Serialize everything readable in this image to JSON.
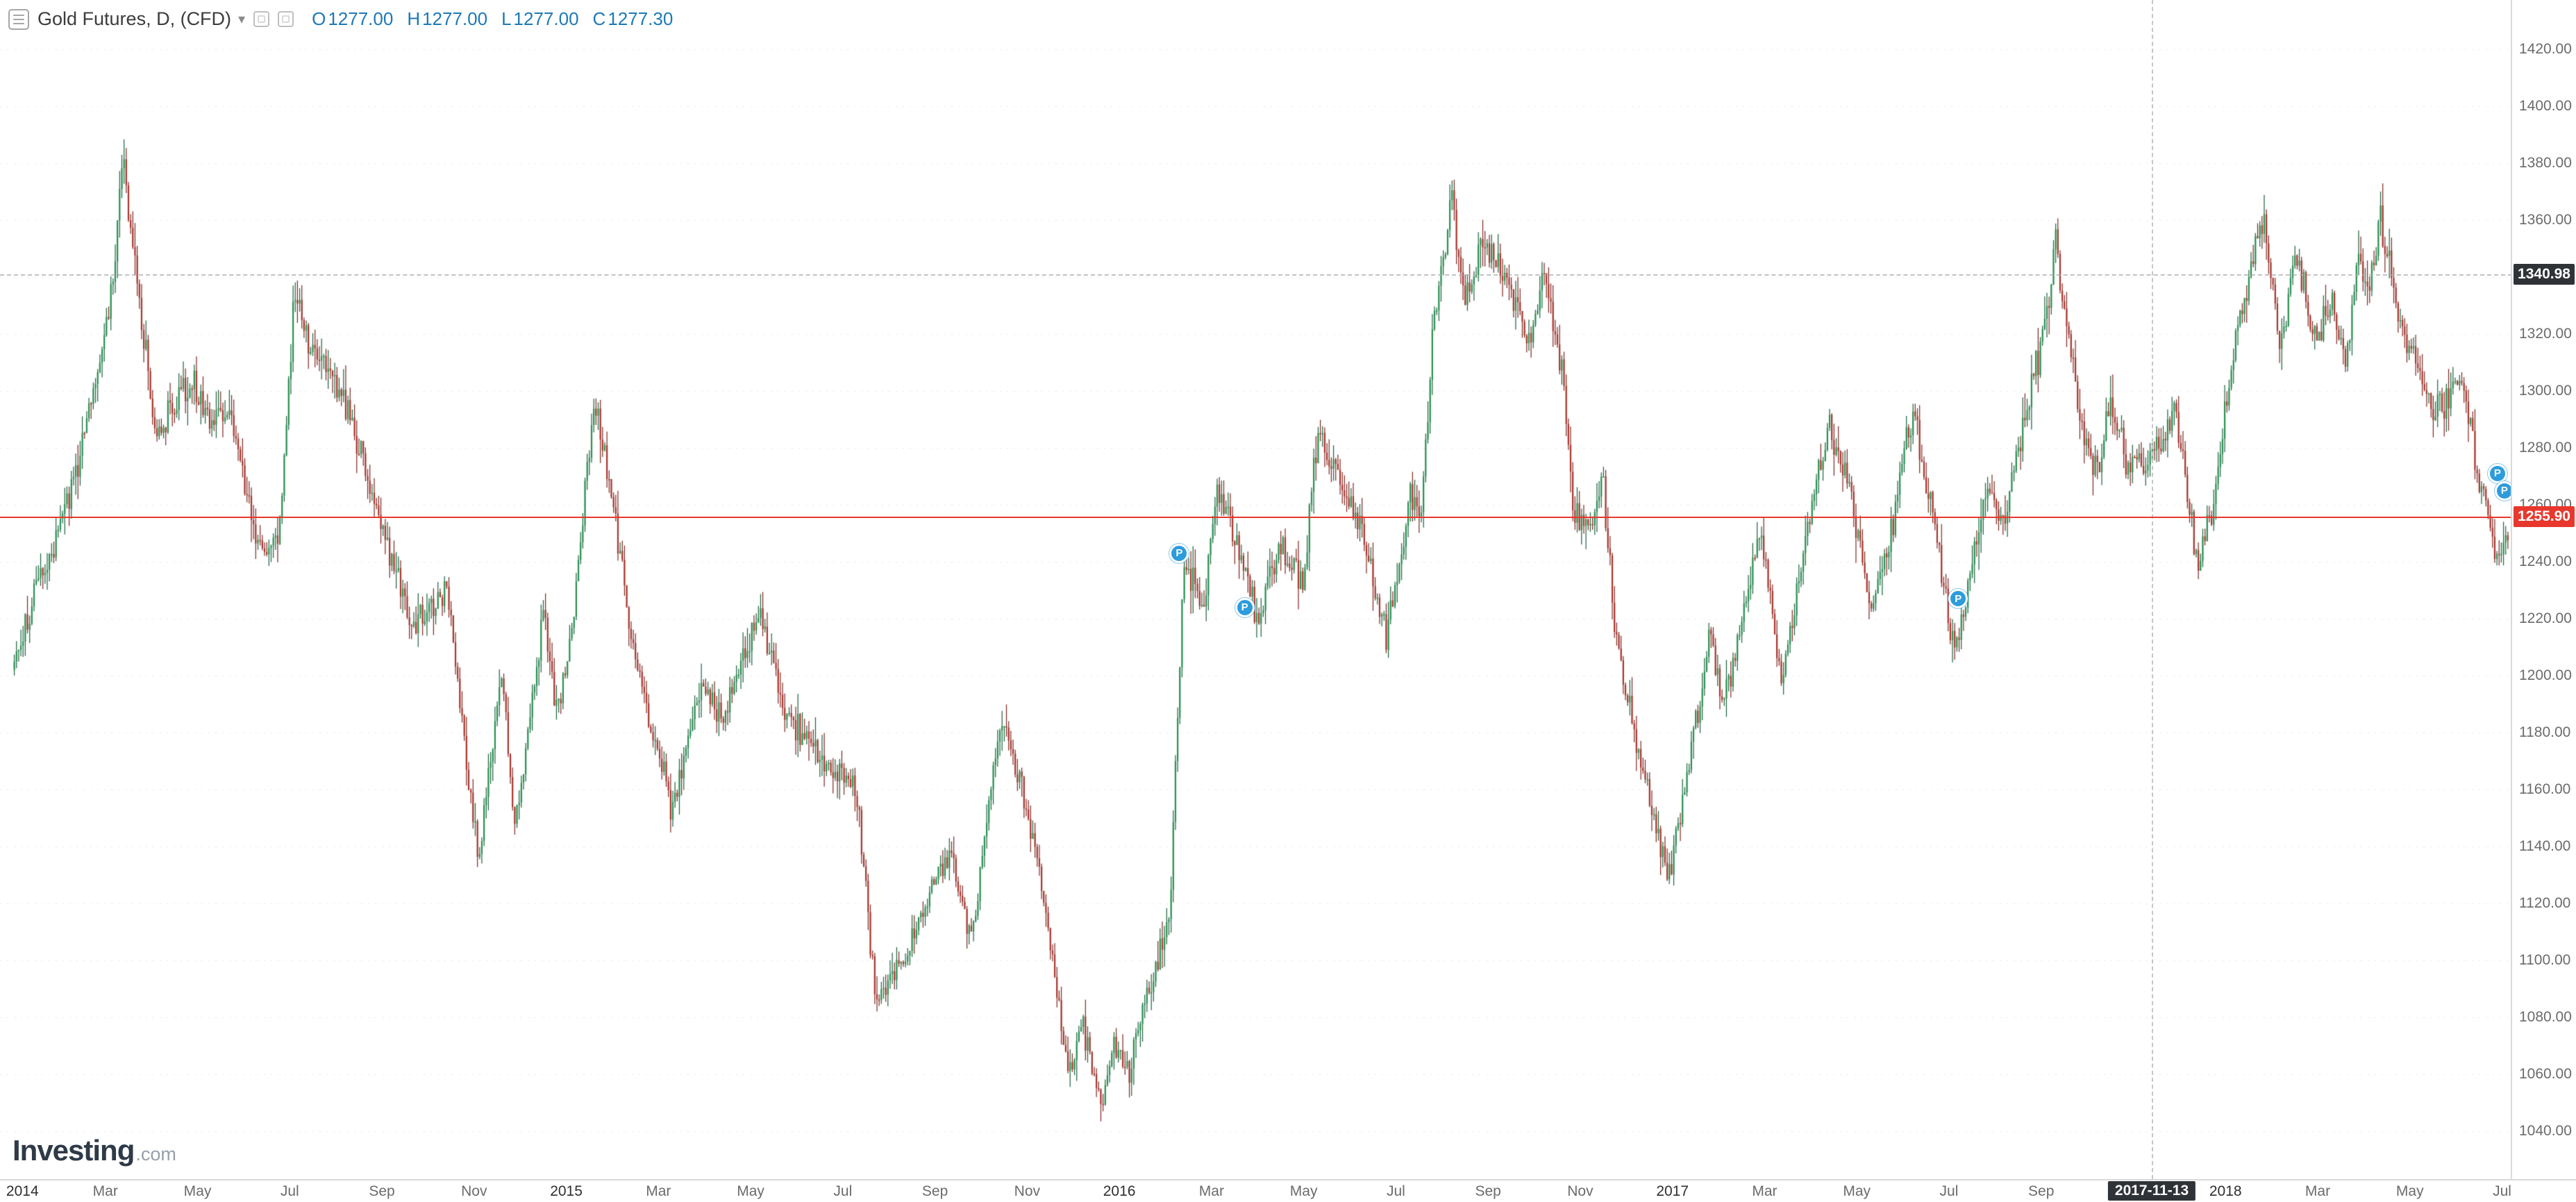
{
  "header": {
    "title": "Gold Futures, D, (CFD)",
    "caret": "▾",
    "ohlc": {
      "open_label": "O",
      "open": "1277.00",
      "high_label": "H",
      "high": "1277.00",
      "low_label": "L",
      "low": "1277.00",
      "close_label": "C",
      "close": "1277.30"
    }
  },
  "logo": {
    "main": "Investing",
    "suffix": ".com"
  },
  "price_axis": {
    "ticks": [
      "1420.00",
      "1400.00",
      "1380.00",
      "1360.00",
      "1340.00",
      "1320.00",
      "1300.00",
      "1280.00",
      "1260.00",
      "1240.00",
      "1220.00",
      "1200.00",
      "1180.00",
      "1160.00",
      "1140.00",
      "1120.00",
      "1100.00",
      "1080.00",
      "1060.00",
      "1040.00"
    ],
    "tags": [
      {
        "value": "1340.98",
        "price": 1340.98,
        "style": "dark"
      },
      {
        "value": "1255.90",
        "price": 1255.9,
        "style": "current"
      }
    ]
  },
  "time_axis": {
    "ticks": [
      {
        "m": 0.2,
        "label": "2014",
        "year": true
      },
      {
        "m": 2,
        "label": "Mar"
      },
      {
        "m": 4,
        "label": "May"
      },
      {
        "m": 6,
        "label": "Jul"
      },
      {
        "m": 8,
        "label": "Sep"
      },
      {
        "m": 10,
        "label": "Nov"
      },
      {
        "m": 12,
        "label": "2015",
        "year": true
      },
      {
        "m": 14,
        "label": "Mar"
      },
      {
        "m": 16,
        "label": "May"
      },
      {
        "m": 18,
        "label": "Jul"
      },
      {
        "m": 20,
        "label": "Sep"
      },
      {
        "m": 22,
        "label": "Nov"
      },
      {
        "m": 24,
        "label": "2016",
        "year": true
      },
      {
        "m": 26,
        "label": "Mar"
      },
      {
        "m": 28,
        "label": "May"
      },
      {
        "m": 30,
        "label": "Jul"
      },
      {
        "m": 32,
        "label": "Sep"
      },
      {
        "m": 34,
        "label": "Nov"
      },
      {
        "m": 36,
        "label": "2017",
        "year": true
      },
      {
        "m": 38,
        "label": "Mar"
      },
      {
        "m": 40,
        "label": "May"
      },
      {
        "m": 42,
        "label": "Jul"
      },
      {
        "m": 44,
        "label": "Sep"
      },
      {
        "m": 48,
        "label": "2018",
        "year": true
      },
      {
        "m": 50,
        "label": "Mar"
      },
      {
        "m": 52,
        "label": "May"
      },
      {
        "m": 54,
        "label": "Jul"
      }
    ],
    "tag": {
      "m": 46.4,
      "label": "2017-11-13"
    }
  },
  "markers": {
    "glyph": "P",
    "color": "#2d9cdb",
    "items": [
      {
        "m": 25.3,
        "price": 1243
      },
      {
        "m": 26.72,
        "price": 1224
      },
      {
        "m": 42.2,
        "price": 1227
      },
      {
        "m": 53.9,
        "price": 1271
      },
      {
        "m": 54.05,
        "price": 1265
      }
    ]
  },
  "colors": {
    "candle_up": "#26904f",
    "candle_up_wick": "#17603a",
    "candle_down": "#a8342b",
    "candle_down_wick": "#7d241e",
    "current_line": "#e8372c",
    "grid": "rgba(0,0,0,0.10)"
  },
  "chart_data": {
    "type": "candlestick",
    "title": "Gold Futures, D, (CFD)",
    "timeframe": "Daily",
    "x_start": "2014-01",
    "x_end": "2018-07",
    "x_unit": "months_since_2014_01",
    "ylim": [
      1040,
      1420
    ],
    "y_tick_step": 20,
    "current_price": 1255.9,
    "marked_level": 1340.98,
    "marked_date": "2017-11-13",
    "marked_date_m": 46.4,
    "legend_ohlc": {
      "open": 1277.0,
      "high": 1277.0,
      "low": 1277.0,
      "close": 1277.3
    },
    "anchors": [
      [
        0,
        1202
      ],
      [
        0.4,
        1225
      ],
      [
        0.8,
        1242
      ],
      [
        1.3,
        1268
      ],
      [
        1.7,
        1300
      ],
      [
        2.1,
        1328
      ],
      [
        2.4,
        1382
      ],
      [
        2.7,
        1335
      ],
      [
        3.1,
        1284
      ],
      [
        3.5,
        1295
      ],
      [
        3.9,
        1302
      ],
      [
        4.3,
        1288
      ],
      [
        4.7,
        1293
      ],
      [
        5.1,
        1258
      ],
      [
        5.4,
        1244
      ],
      [
        5.8,
        1253
      ],
      [
        6.1,
        1335
      ],
      [
        6.4,
        1318
      ],
      [
        6.9,
        1306
      ],
      [
        7.3,
        1294
      ],
      [
        7.8,
        1262
      ],
      [
        8.2,
        1240
      ],
      [
        8.6,
        1218
      ],
      [
        9.0,
        1222
      ],
      [
        9.4,
        1232
      ],
      [
        9.7,
        1188
      ],
      [
        10.1,
        1135
      ],
      [
        10.4,
        1178
      ],
      [
        10.6,
        1198
      ],
      [
        10.9,
        1146
      ],
      [
        11.2,
        1186
      ],
      [
        11.5,
        1222
      ],
      [
        11.8,
        1186
      ],
      [
        12.1,
        1212
      ],
      [
        12.6,
        1297
      ],
      [
        13.0,
        1262
      ],
      [
        13.5,
        1204
      ],
      [
        14.3,
        1152
      ],
      [
        14.9,
        1198
      ],
      [
        15.4,
        1184
      ],
      [
        16.2,
        1224
      ],
      [
        16.7,
        1188
      ],
      [
        17.2,
        1178
      ],
      [
        17.7,
        1168
      ],
      [
        18.3,
        1158
      ],
      [
        18.7,
        1088
      ],
      [
        19.2,
        1096
      ],
      [
        19.8,
        1118
      ],
      [
        20.3,
        1140
      ],
      [
        20.8,
        1108
      ],
      [
        21.4,
        1184
      ],
      [
        21.9,
        1160
      ],
      [
        22.4,
        1118
      ],
      [
        22.9,
        1058
      ],
      [
        23.2,
        1078
      ],
      [
        23.6,
        1048
      ],
      [
        23.9,
        1072
      ],
      [
        24.2,
        1062
      ],
      [
        24.7,
        1094
      ],
      [
        25.1,
        1120
      ],
      [
        25.4,
        1242
      ],
      [
        25.8,
        1222
      ],
      [
        26.1,
        1262
      ],
      [
        26.5,
        1250
      ],
      [
        27.0,
        1218
      ],
      [
        27.5,
        1246
      ],
      [
        28.0,
        1232
      ],
      [
        28.3,
        1288
      ],
      [
        28.8,
        1268
      ],
      [
        29.3,
        1248
      ],
      [
        29.8,
        1212
      ],
      [
        30.3,
        1262
      ],
      [
        30.55,
        1258
      ],
      [
        30.8,
        1322
      ],
      [
        31.2,
        1367
      ],
      [
        31.5,
        1332
      ],
      [
        31.9,
        1352
      ],
      [
        32.4,
        1338
      ],
      [
        32.9,
        1314
      ],
      [
        33.2,
        1342
      ],
      [
        33.6,
        1308
      ],
      [
        33.85,
        1256
      ],
      [
        34.3,
        1252
      ],
      [
        34.45,
        1274
      ],
      [
        34.8,
        1208
      ],
      [
        35.3,
        1172
      ],
      [
        35.9,
        1128
      ],
      [
        36.2,
        1152
      ],
      [
        36.8,
        1216
      ],
      [
        37.1,
        1188
      ],
      [
        37.9,
        1252
      ],
      [
        38.35,
        1198
      ],
      [
        38.9,
        1250
      ],
      [
        39.4,
        1288
      ],
      [
        39.9,
        1262
      ],
      [
        40.3,
        1222
      ],
      [
        40.8,
        1256
      ],
      [
        41.2,
        1293
      ],
      [
        41.7,
        1252
      ],
      [
        42.1,
        1208
      ],
      [
        42.8,
        1262
      ],
      [
        43.2,
        1256
      ],
      [
        43.6,
        1288
      ],
      [
        44.0,
        1316
      ],
      [
        44.3,
        1352
      ],
      [
        44.8,
        1294
      ],
      [
        45.2,
        1268
      ],
      [
        45.5,
        1298
      ],
      [
        45.9,
        1272
      ],
      [
        46.4,
        1278
      ],
      [
        46.9,
        1292
      ],
      [
        47.4,
        1238
      ],
      [
        47.7,
        1256
      ],
      [
        48.1,
        1308
      ],
      [
        48.5,
        1342
      ],
      [
        48.85,
        1360
      ],
      [
        49.2,
        1312
      ],
      [
        49.5,
        1350
      ],
      [
        49.9,
        1318
      ],
      [
        50.3,
        1332
      ],
      [
        50.6,
        1310
      ],
      [
        50.9,
        1348
      ],
      [
        51.1,
        1332
      ],
      [
        51.35,
        1362
      ],
      [
        51.8,
        1322
      ],
      [
        52.1,
        1310
      ],
      [
        52.45,
        1294
      ],
      [
        52.8,
        1298
      ],
      [
        53.15,
        1306
      ],
      [
        53.5,
        1268
      ],
      [
        53.9,
        1240
      ],
      [
        54.05,
        1252
      ],
      [
        54.15,
        1248
      ]
    ]
  }
}
